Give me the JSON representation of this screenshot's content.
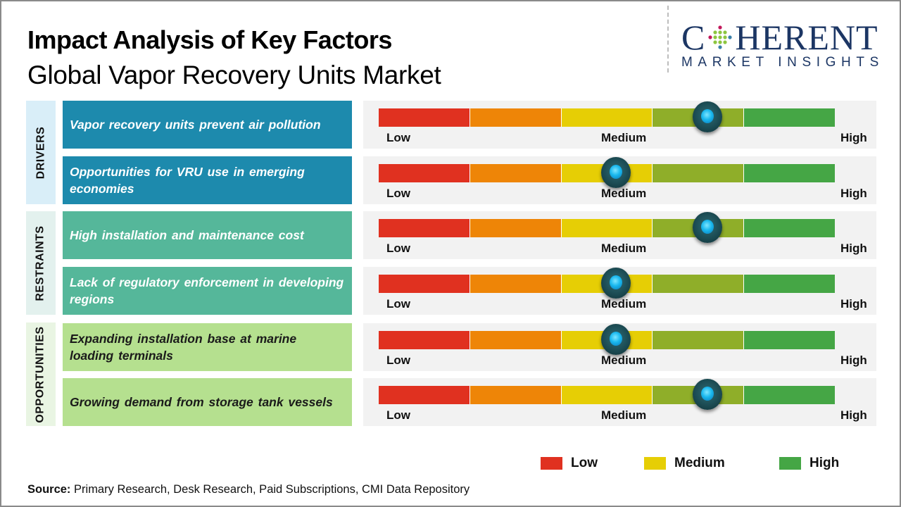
{
  "header": {
    "title": "Impact Analysis of Key Factors",
    "subtitle": "Global Vapor Recovery Units Market"
  },
  "logo": {
    "main_first": "C",
    "main_rest": "HERENT",
    "sub": "MARKET INSIGHTS",
    "icon": "globe-dots-icon"
  },
  "colors": {
    "drivers": "#1d8aad",
    "restraints": "#55b79a",
    "opportunities": "#b5e08f",
    "segments": [
      "#e03120",
      "#ee8507",
      "#e6ce05",
      "#8fae29",
      "#45a645"
    ],
    "legend_low": "#e03120",
    "legend_medium": "#e6ce05",
    "legend_high": "#45a645"
  },
  "chart_data": {
    "type": "table",
    "title": "Impact Analysis of Key Factors",
    "subtitle": "Global Vapor Recovery Units Market",
    "scale_labels": [
      "Low",
      "Medium",
      "High"
    ],
    "scale_segments": 5,
    "scale_range": [
      0,
      1
    ],
    "categories": [
      {
        "name": "DRIVERS",
        "factors": [
          {
            "label": "Vapor recovery units prevent air pollution",
            "impact": 0.72
          },
          {
            "label": "Opportunities for VRU use in emerging economies",
            "impact": 0.52
          }
        ]
      },
      {
        "name": "RESTRAINTS",
        "factors": [
          {
            "label": "High installation and maintenance cost",
            "impact": 0.72
          },
          {
            "label": "Lack of regulatory enforcement in developing regions",
            "impact": 0.52
          }
        ]
      },
      {
        "name": "OPPORTUNITIES",
        "factors": [
          {
            "label": "Expanding installation base at marine loading terminals",
            "impact": 0.52
          },
          {
            "label": "Growing demand from storage tank vessels",
            "impact": 0.72
          }
        ]
      }
    ],
    "legend": [
      "Low",
      "Medium",
      "High"
    ]
  },
  "legend": {
    "low": "Low",
    "medium": "Medium",
    "high": "High"
  },
  "footer": {
    "source_label": "Source:",
    "source_text": " Primary Research, Desk Research, Paid Subscriptions, CMI Data Repository"
  }
}
